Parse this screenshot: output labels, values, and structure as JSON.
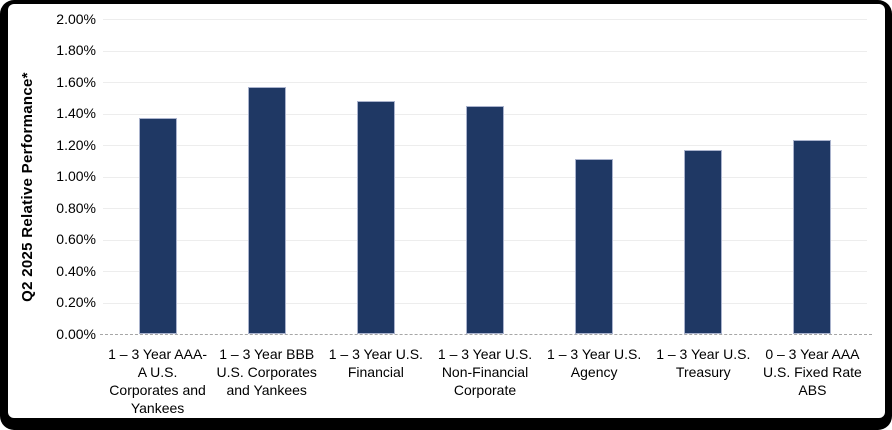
{
  "frame": {
    "background_color": "#000000",
    "panel_color": "#ffffff"
  },
  "chart_data": {
    "type": "bar",
    "title": "",
    "xlabel": "",
    "ylabel": "Q2 2025 Relative Performance*",
    "ylim": [
      0,
      2.0
    ],
    "ytick_step": 0.2,
    "ytick_labels": [
      "2.00%",
      "1.80%",
      "1.60%",
      "1.40%",
      "1.20%",
      "1.00%",
      "0.80%",
      "0.60%",
      "0.40%",
      "0.20%",
      "0.00%"
    ],
    "grid": true,
    "gridline_color": "#ededed",
    "zero_line_style": "dashed",
    "zero_line_color": "#a6a6a6",
    "bar_color": "#1F3864",
    "bar_border_color": "#aab3cd",
    "legend": null,
    "categories": [
      "1 – 3 Year AAA-A U.S. Corporates and Yankees",
      "1 – 3 Year BBB U.S. Corporates and Yankees",
      "1 – 3 Year U.S. Financial",
      "1 – 3 Year U.S. Non-Financial Corporate",
      "1 – 3 Year U.S. Agency",
      "1 – 3 Year U.S. Treasury",
      "0 – 3 Year AAA U.S. Fixed Rate ABS"
    ],
    "category_lines": [
      [
        "1 – 3 Year AAA-",
        "A U.S.",
        "Corporates and",
        "Yankees"
      ],
      [
        "1 – 3 Year BBB",
        "U.S. Corporates",
        "and Yankees"
      ],
      [
        "1 – 3 Year U.S.",
        "Financial"
      ],
      [
        "1 – 3 Year U.S.",
        "Non-Financial",
        "Corporate"
      ],
      [
        "1 – 3 Year U.S.",
        "Agency"
      ],
      [
        "1 – 3 Year U.S.",
        "Treasury"
      ],
      [
        "0 – 3 Year AAA",
        "U.S. Fixed Rate",
        "ABS"
      ]
    ],
    "values": [
      1.37,
      1.57,
      1.48,
      1.45,
      1.11,
      1.17,
      1.23
    ],
    "values_unit": "percent"
  }
}
